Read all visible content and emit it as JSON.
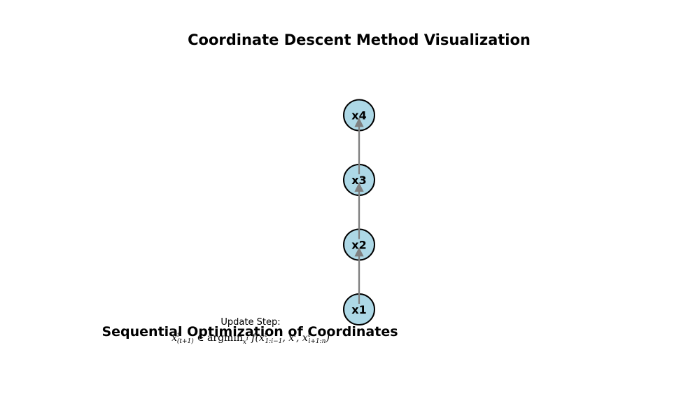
{
  "diagram": {
    "title": "Coordinate Descent Method Visualization",
    "caption": "Sequential Optimization of Coordinates",
    "annotation": {
      "heading": "Update Step:",
      "formula": {
        "lhs_base": "x",
        "lhs_sup": "i",
        "lhs_sub": "(t+1)",
        "relation": " ∈ argmin",
        "argmin_sub": "x",
        "argmin_sub_sup": "i",
        "function": " f(x",
        "arg1_sup": "t",
        "arg1_sub": "1:i−1",
        "arg2": ", x",
        "arg2_sup": "i",
        "arg3": ", x",
        "arg3_sup": "t",
        "arg3_sub": "i+1:n",
        "close": ")"
      }
    },
    "nodes": [
      {
        "id": "x1",
        "label": "x1"
      },
      {
        "id": "x2",
        "label": "x2"
      },
      {
        "id": "x3",
        "label": "x3"
      },
      {
        "id": "x4",
        "label": "x4"
      }
    ],
    "edges": [
      {
        "from": "x1",
        "to": "x2"
      },
      {
        "from": "x2",
        "to": "x3"
      },
      {
        "from": "x3",
        "to": "x4"
      }
    ],
    "colors": {
      "node_fill": "#add8e6",
      "node_stroke": "#000000",
      "edge": "#808080"
    }
  }
}
